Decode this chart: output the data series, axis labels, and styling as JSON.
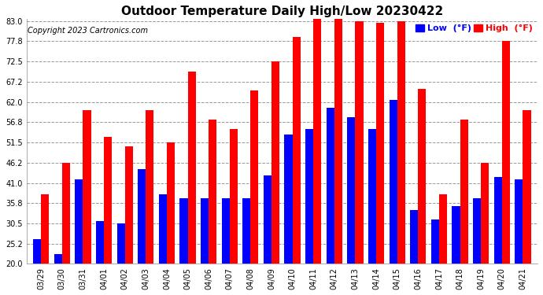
{
  "title": "Outdoor Temperature Daily High/Low 20230422",
  "copyright": "Copyright 2023 Cartronics.com",
  "dates": [
    "03/29",
    "03/30",
    "03/31",
    "04/01",
    "04/02",
    "04/03",
    "04/04",
    "04/05",
    "04/06",
    "04/07",
    "04/08",
    "04/09",
    "04/10",
    "04/11",
    "04/12",
    "04/13",
    "04/14",
    "04/15",
    "04/16",
    "04/17",
    "04/18",
    "04/19",
    "04/20",
    "04/21"
  ],
  "high": [
    38.0,
    46.2,
    60.0,
    53.0,
    50.5,
    60.0,
    51.5,
    70.0,
    57.5,
    55.0,
    65.0,
    72.5,
    79.0,
    83.5,
    83.5,
    83.0,
    82.5,
    83.0,
    65.5,
    38.0,
    57.5,
    46.2,
    77.8,
    60.0
  ],
  "low": [
    26.5,
    22.5,
    42.0,
    31.0,
    30.5,
    44.5,
    38.0,
    37.0,
    37.0,
    37.0,
    37.0,
    43.0,
    53.5,
    55.0,
    60.5,
    58.0,
    55.0,
    62.5,
    34.0,
    31.5,
    35.0,
    37.0,
    42.5,
    42.0
  ],
  "ylim": [
    20.0,
    83.0
  ],
  "yticks": [
    20.0,
    25.2,
    30.5,
    35.8,
    41.0,
    46.2,
    51.5,
    56.8,
    62.0,
    67.2,
    72.5,
    77.8,
    83.0
  ],
  "high_color": "#ff0000",
  "low_color": "#0000ff",
  "background_color": "#ffffff",
  "grid_color": "#999999",
  "title_fontsize": 11,
  "copyright_fontsize": 7,
  "legend_fontsize": 8,
  "tick_fontsize": 7,
  "legend_low_label": "Low  (°F)",
  "legend_high_label": "High  (°F)",
  "bar_width": 0.38
}
